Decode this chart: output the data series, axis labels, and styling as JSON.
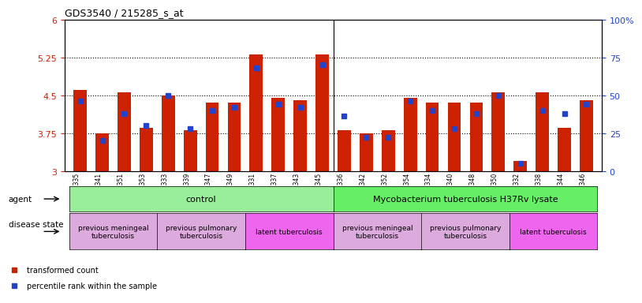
{
  "title": "GDS3540 / 215285_s_at",
  "samples": [
    "GSM280335",
    "GSM280341",
    "GSM280351",
    "GSM280353",
    "GSM280333",
    "GSM280339",
    "GSM280347",
    "GSM280349",
    "GSM280331",
    "GSM280337",
    "GSM280343",
    "GSM280345",
    "GSM280336",
    "GSM280342",
    "GSM280352",
    "GSM280354",
    "GSM280334",
    "GSM280340",
    "GSM280348",
    "GSM280350",
    "GSM280332",
    "GSM280338",
    "GSM280344",
    "GSM280346"
  ],
  "red_values": [
    4.6,
    3.75,
    4.55,
    3.85,
    4.5,
    3.8,
    4.35,
    4.35,
    5.3,
    4.45,
    4.4,
    5.3,
    3.8,
    3.75,
    3.8,
    4.45,
    4.35,
    4.35,
    4.35,
    4.55,
    3.2,
    4.55,
    3.85,
    4.4
  ],
  "blue_values": [
    46,
    20,
    38,
    30,
    50,
    28,
    40,
    42,
    68,
    44,
    42,
    70,
    36,
    22,
    22,
    46,
    40,
    28,
    38,
    50,
    5,
    40,
    38,
    44
  ],
  "ylim_left": [
    3.0,
    6.0
  ],
  "ylim_right": [
    0,
    100
  ],
  "yticks_left": [
    3.0,
    3.75,
    4.5,
    5.25,
    6.0
  ],
  "yticks_right": [
    0,
    25,
    50,
    75,
    100
  ],
  "ytick_labels_left": [
    "3",
    "3.75",
    "4.5",
    "5.25",
    "6"
  ],
  "ytick_labels_right": [
    "0",
    "25",
    "50",
    "75",
    "100%"
  ],
  "hlines": [
    3.75,
    4.5,
    5.25
  ],
  "bar_width": 0.6,
  "red_color": "#cc2200",
  "blue_color": "#2244cc",
  "agent_groups": [
    {
      "label": "control",
      "start": 0,
      "end": 11,
      "color": "#99ee99"
    },
    {
      "label": "Mycobacterium tuberculosis H37Rv lysate",
      "start": 12,
      "end": 23,
      "color": "#66ee66"
    }
  ],
  "disease_groups": [
    {
      "label": "previous meningeal\ntuberculosis",
      "start": 0,
      "end": 3,
      "color": "#ddaadd"
    },
    {
      "label": "previous pulmonary\ntuberculosis",
      "start": 4,
      "end": 7,
      "color": "#ddaadd"
    },
    {
      "label": "latent tuberculosis",
      "start": 8,
      "end": 11,
      "color": "#ee66ee"
    },
    {
      "label": "previous meningeal\ntuberculosis",
      "start": 12,
      "end": 15,
      "color": "#ddaadd"
    },
    {
      "label": "previous pulmonary\ntuberculosis",
      "start": 16,
      "end": 19,
      "color": "#ddaadd"
    },
    {
      "label": "latent tuberculosis",
      "start": 20,
      "end": 23,
      "color": "#ee66ee"
    }
  ],
  "legend_items": [
    {
      "label": "transformed count",
      "color": "#cc2200",
      "marker": "s"
    },
    {
      "label": "percentile rank within the sample",
      "color": "#2244cc",
      "marker": "s"
    }
  ],
  "xlabel": "",
  "bg_color": "#ffffff"
}
